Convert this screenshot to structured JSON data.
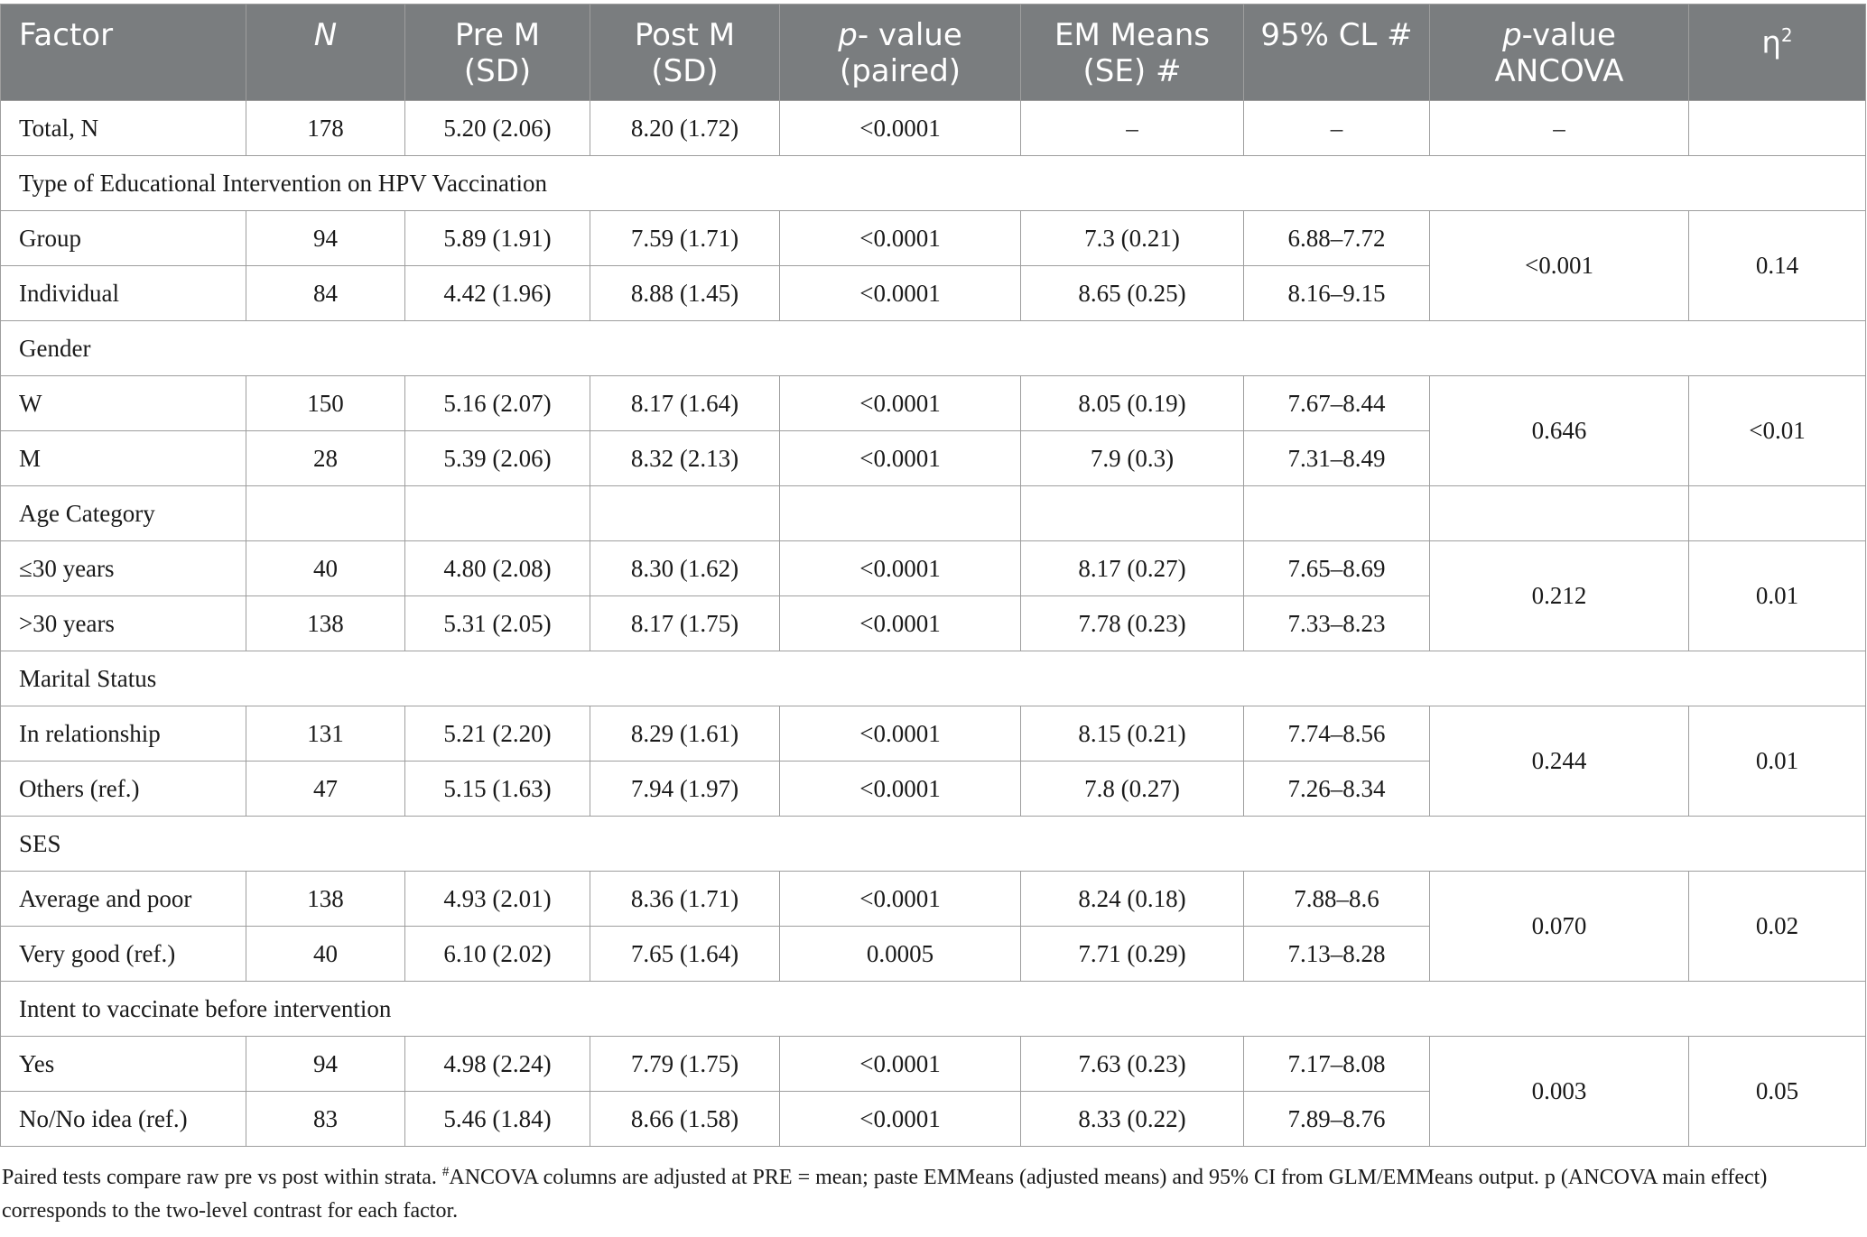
{
  "header": {
    "factor": "Factor",
    "n": "N",
    "pre_line1": "Pre M",
    "pre_line2": "(SD)",
    "post_line1": "Post M",
    "post_line2": "(SD)",
    "pval_p": "p",
    "pval_rest": "- value",
    "pval_line2": "(paired)",
    "em_line1": "EM Means",
    "em_line2": "(SE) #",
    "ci": "95% CL #",
    "ancova_p": "p",
    "ancova_rest": "-value",
    "ancova_line2": "ANCOVA",
    "eta": "η",
    "eta_sup": "2"
  },
  "total": {
    "label": "Total, N",
    "n": "178",
    "pre": "5.20 (2.06)",
    "post": "8.20 (1.72)",
    "p": "<0.0001",
    "em": "–",
    "ci": "–",
    "ancova": "–",
    "eta": ""
  },
  "sections": [
    {
      "title": "Type of Educational Intervention on HPV Vaccination",
      "ancova": "<0.001",
      "eta": "0.14",
      "rows": [
        {
          "label": "Group",
          "n": "94",
          "pre": "5.89 (1.91)",
          "post": "7.59 (1.71)",
          "p": "<0.0001",
          "em": "7.3 (0.21)",
          "ci": "6.88–7.72"
        },
        {
          "label": "Individual",
          "n": "84",
          "pre": "4.42 (1.96)",
          "post": "8.88 (1.45)",
          "p": "<0.0001",
          "em": "8.65 (0.25)",
          "ci": "8.16–9.15"
        }
      ]
    },
    {
      "title": "Gender",
      "ancova": "0.646",
      "eta": "<0.01",
      "rows": [
        {
          "label": "W",
          "n": "150",
          "pre": "5.16 (2.07)",
          "post": "8.17 (1.64)",
          "p": "<0.0001",
          "em": "8.05 (0.19)",
          "ci": "7.67–8.44"
        },
        {
          "label": "M",
          "n": "28",
          "pre": "5.39 (2.06)",
          "post": "8.32 (2.13)",
          "p": "<0.0001",
          "em": "7.9 (0.3)",
          "ci": "7.31–8.49"
        }
      ]
    },
    {
      "title": "Age Category",
      "ancova": "0.212",
      "eta": "0.01",
      "rows": [
        {
          "label": "≤30 years",
          "n": "40",
          "pre": "4.80 (2.08)",
          "post": "8.30 (1.62)",
          "p": "<0.0001",
          "em": "8.17 (0.27)",
          "ci": "7.65–8.69"
        },
        {
          "label": ">30 years",
          "n": "138",
          "pre": "5.31 (2.05)",
          "post": "8.17 (1.75)",
          "p": "<0.0001",
          "em": "7.78 (0.23)",
          "ci": "7.33–8.23"
        }
      ]
    },
    {
      "title": "Marital Status",
      "ancova": "0.244",
      "eta": "0.01",
      "rows": [
        {
          "label": "In relationship",
          "n": "131",
          "pre": "5.21 (2.20)",
          "post": "8.29 (1.61)",
          "p": "<0.0001",
          "em": "8.15 (0.21)",
          "ci": "7.74–8.56"
        },
        {
          "label": "Others (ref.)",
          "n": "47",
          "pre": "5.15 (1.63)",
          "post": "7.94 (1.97)",
          "p": "<0.0001",
          "em": "7.8 (0.27)",
          "ci": "7.26–8.34"
        }
      ]
    },
    {
      "title": "SES",
      "ancova": "0.070",
      "eta": "0.02",
      "rows": [
        {
          "label": "Average and poor",
          "n": "138",
          "pre": "4.93 (2.01)",
          "post": "8.36 (1.71)",
          "p": "<0.0001",
          "em": "8.24 (0.18)",
          "ci": "7.88–8.6"
        },
        {
          "label": "Very good (ref.)",
          "n": "40",
          "pre": "6.10 (2.02)",
          "post": "7.65 (1.64)",
          "p": "0.0005",
          "em": "7.71 (0.29)",
          "ci": "7.13–8.28"
        }
      ]
    },
    {
      "title": "Intent to vaccinate before intervention",
      "ancova": "0.003",
      "eta": "0.05",
      "rows": [
        {
          "label": "Yes",
          "n": "94",
          "pre": "4.98 (2.24)",
          "post": "7.79 (1.75)",
          "p": "<0.0001",
          "em": "7.63 (0.23)",
          "ci": "7.17–8.08"
        },
        {
          "label": "No/No idea (ref.)",
          "n": "83",
          "pre": "5.46 (1.84)",
          "post": "8.66 (1.58)",
          "p": "<0.0001",
          "em": "8.33 (0.22)",
          "ci": "7.89–8.76"
        }
      ]
    }
  ],
  "footnote": {
    "part1": "Paired tests compare raw pre vs post within strata. ",
    "marker": "#",
    "part2": "ANCOVA columns are adjusted at PRE = mean; paste EMMeans (adjusted means) and 95% CI from GLM/EMMeans output. p (ANCOVA main effect) corresponds to the two-level contrast for each factor."
  }
}
